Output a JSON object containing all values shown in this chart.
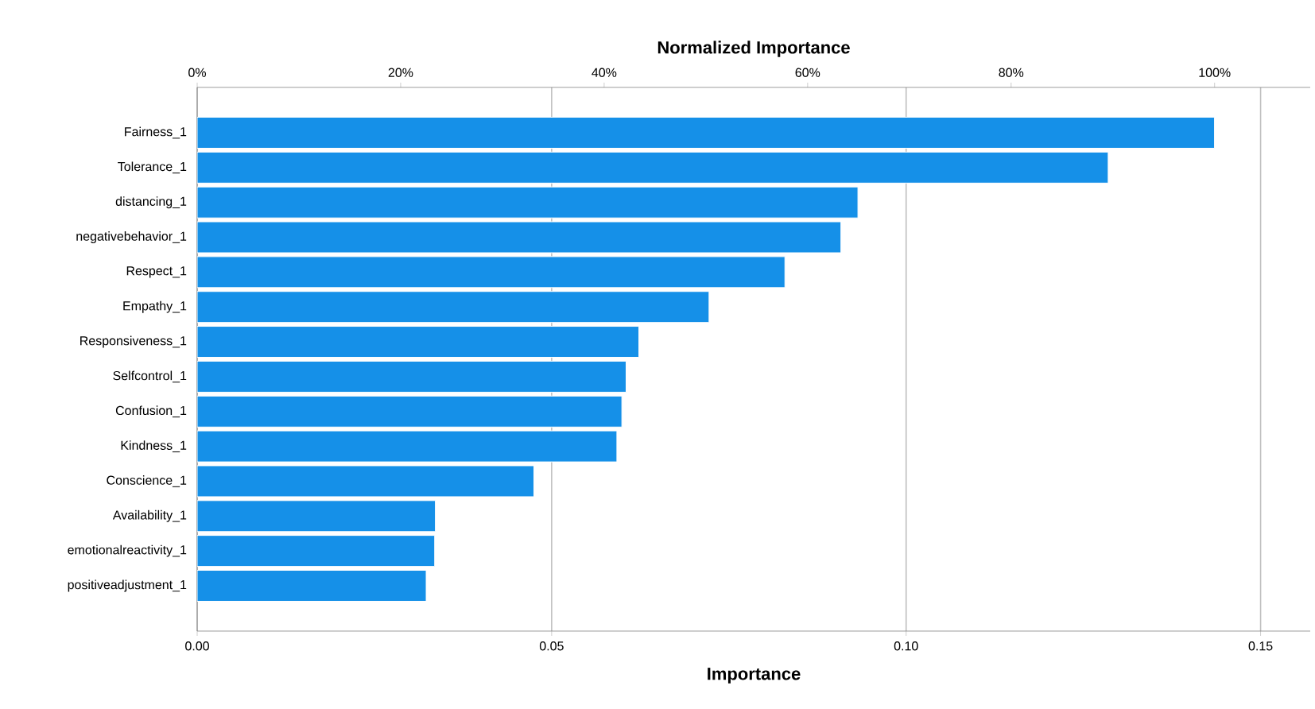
{
  "chart_data": {
    "type": "bar",
    "orientation": "horizontal",
    "xlabel": "Importance",
    "x2label": "Normalized Importance",
    "categories": [
      "Fairness_1",
      "Tolerance_1",
      "distancing_1",
      "negativebehavior_1",
      "Respect_1",
      "Empathy_1",
      "Responsiveness_1",
      "Selfcontrol_1",
      "Confusion_1",
      "Kindness_1",
      "Conscience_1",
      "Availability_1",
      "emotionalreactivity_1",
      "positiveadjustment_1"
    ],
    "values": [
      0.1435,
      0.1285,
      0.0932,
      0.0908,
      0.0829,
      0.0722,
      0.0623,
      0.0605,
      0.0599,
      0.0592,
      0.0475,
      0.0336,
      0.0335,
      0.0323
    ],
    "color": "#1590e8",
    "xlim": [
      0,
      0.157
    ],
    "xticks": [
      {
        "value": 0,
        "label": "0.00"
      },
      0.05,
      {
        "value": 0.1,
        "label": "0.10"
      },
      0.15
    ],
    "x2lim": [
      0,
      109.4
    ],
    "x2ticks": [
      {
        "value": 0,
        "label": "0%"
      },
      {
        "value": 20,
        "label": "20%"
      },
      {
        "value": 40,
        "label": "40%"
      },
      {
        "value": 60,
        "label": "60%"
      },
      {
        "value": 80,
        "label": "80%"
      },
      {
        "value": 100,
        "label": "100%"
      }
    ],
    "grid": "x"
  }
}
